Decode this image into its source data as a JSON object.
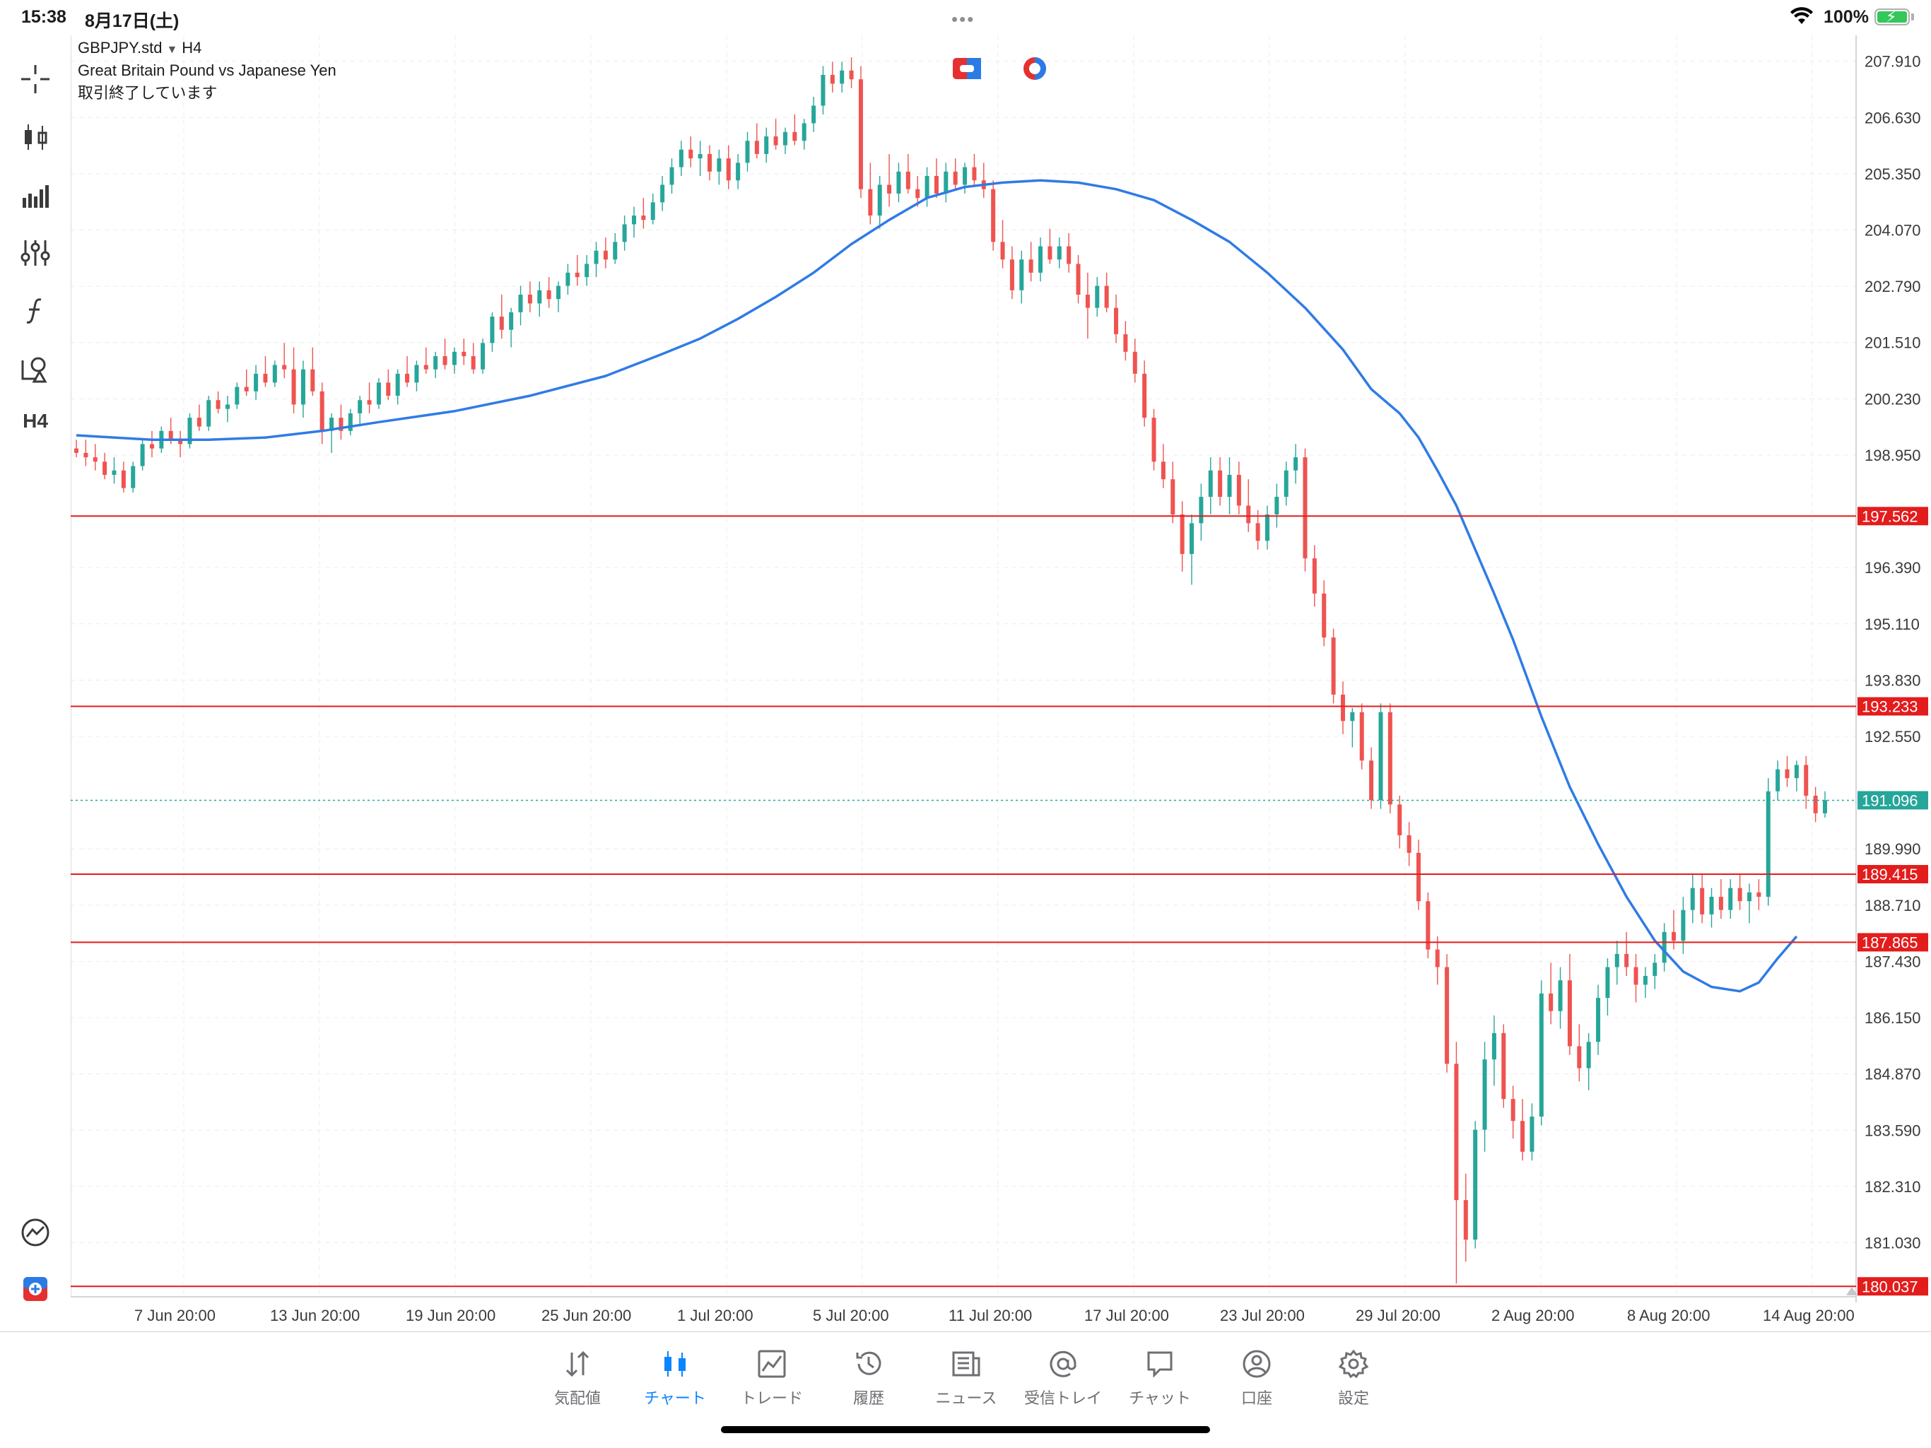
{
  "status_bar": {
    "time": "15:38",
    "date": "8月17日(土)",
    "dots": "•••",
    "battery": "100%"
  },
  "chart": {
    "symbol": "GBPJPY.std",
    "timeframe": "H4",
    "description": "Great Britain Pound vs Japanese Yen",
    "market_status": "取引終了しています",
    "colors": {
      "bull": "#26a69a",
      "bear": "#ef5350",
      "ma": "#2f7be6",
      "hline": "#e31c1c",
      "grid": "#ececec",
      "current": "#26a69a"
    }
  },
  "toolbar": {
    "timeframe_label": "H4",
    "items": [
      "crosshair-icon",
      "candlestick-icon",
      "indicators-icon",
      "sliders-icon",
      "function-icon",
      "objects-icon",
      "timeframe",
      "trend-icon",
      "trade-icon"
    ]
  },
  "chart_data": {
    "type": "candlestick",
    "y_ticks": [
      "207.910",
      "206.630",
      "205.350",
      "204.070",
      "202.790",
      "201.510",
      "200.230",
      "198.950",
      "196.390",
      "195.110",
      "193.830",
      "192.550",
      "189.990",
      "188.710",
      "187.430",
      "186.150",
      "184.870",
      "183.590",
      "182.310",
      "181.030"
    ],
    "y_range": [
      179.8,
      208.5
    ],
    "x_ticks": [
      "7 Jun 20:00",
      "13 Jun 20:00",
      "19 Jun 20:00",
      "25 Jun 20:00",
      "1 Jul 20:00",
      "5 Jul 20:00",
      "11 Jul 20:00",
      "17 Jul 20:00",
      "23 Jul 20:00",
      "29 Jul 20:00",
      "2 Aug 20:00",
      "8 Aug 20:00",
      "14 Aug 20:00"
    ],
    "horizontal_lines": [
      {
        "price": "197.562",
        "value": 197.562
      },
      {
        "price": "193.233",
        "value": 193.233
      },
      {
        "price": "189.415",
        "value": 189.415
      },
      {
        "price": "187.865",
        "value": 187.865
      },
      {
        "price": "180.037",
        "value": 180.037
      }
    ],
    "current_price": {
      "label": "191.096",
      "value": 191.096
    },
    "candles": [
      [
        199.1,
        199.3,
        198.9,
        199.0
      ],
      [
        199.0,
        199.3,
        198.7,
        198.9
      ],
      [
        198.9,
        199.2,
        198.6,
        198.8
      ],
      [
        198.8,
        199.0,
        198.4,
        198.5
      ],
      [
        198.5,
        198.9,
        198.3,
        198.6
      ],
      [
        198.6,
        198.8,
        198.1,
        198.2
      ],
      [
        198.2,
        198.8,
        198.1,
        198.7
      ],
      [
        198.7,
        199.3,
        198.6,
        199.2
      ],
      [
        199.2,
        199.5,
        198.9,
        199.1
      ],
      [
        199.1,
        199.6,
        199.0,
        199.5
      ],
      [
        199.5,
        199.8,
        199.2,
        199.3
      ],
      [
        199.3,
        199.5,
        198.9,
        199.2
      ],
      [
        199.2,
        199.9,
        199.1,
        199.8
      ],
      [
        199.8,
        200.1,
        199.5,
        199.6
      ],
      [
        199.6,
        200.3,
        199.5,
        200.2
      ],
      [
        200.2,
        200.4,
        199.9,
        200.0
      ],
      [
        200.0,
        200.3,
        199.7,
        200.1
      ],
      [
        200.1,
        200.6,
        200.0,
        200.5
      ],
      [
        200.5,
        200.9,
        200.3,
        200.4
      ],
      [
        200.4,
        201.0,
        200.2,
        200.8
      ],
      [
        200.8,
        201.2,
        200.5,
        200.6
      ],
      [
        200.6,
        201.1,
        200.5,
        201.0
      ],
      [
        201.0,
        201.5,
        200.7,
        200.9
      ],
      [
        200.9,
        201.4,
        199.9,
        200.1
      ],
      [
        200.1,
        201.1,
        199.8,
        200.9
      ],
      [
        200.9,
        201.4,
        200.3,
        200.4
      ],
      [
        200.4,
        200.6,
        199.2,
        199.5
      ],
      [
        199.5,
        199.9,
        199.0,
        199.8
      ],
      [
        199.8,
        200.1,
        199.3,
        199.5
      ],
      [
        199.5,
        200.0,
        199.4,
        199.9
      ],
      [
        199.9,
        200.3,
        199.6,
        200.2
      ],
      [
        200.2,
        200.6,
        199.9,
        200.1
      ],
      [
        200.1,
        200.7,
        200.0,
        200.6
      ],
      [
        200.6,
        200.9,
        200.2,
        200.3
      ],
      [
        200.3,
        200.9,
        200.1,
        200.8
      ],
      [
        200.8,
        201.2,
        200.5,
        200.6
      ],
      [
        200.6,
        201.1,
        200.4,
        201.0
      ],
      [
        201.0,
        201.4,
        200.8,
        200.9
      ],
      [
        200.9,
        201.3,
        200.7,
        201.2
      ],
      [
        201.2,
        201.6,
        200.9,
        201.0
      ],
      [
        201.0,
        201.4,
        200.8,
        201.3
      ],
      [
        201.3,
        201.6,
        201.0,
        201.2
      ],
      [
        201.2,
        201.5,
        200.8,
        200.9
      ],
      [
        200.9,
        201.6,
        200.8,
        201.5
      ],
      [
        201.5,
        202.2,
        201.3,
        202.1
      ],
      [
        202.1,
        202.6,
        201.6,
        201.8
      ],
      [
        201.8,
        202.3,
        201.4,
        202.2
      ],
      [
        202.2,
        202.8,
        201.9,
        202.6
      ],
      [
        202.6,
        202.9,
        202.2,
        202.4
      ],
      [
        202.4,
        202.9,
        202.1,
        202.7
      ],
      [
        202.7,
        203.0,
        202.3,
        202.5
      ],
      [
        202.5,
        202.9,
        202.2,
        202.8
      ],
      [
        202.8,
        203.3,
        202.6,
        203.1
      ],
      [
        203.1,
        203.5,
        202.8,
        203.0
      ],
      [
        203.0,
        203.5,
        202.8,
        203.3
      ],
      [
        203.3,
        203.8,
        203.0,
        203.6
      ],
      [
        203.6,
        203.9,
        203.2,
        203.4
      ],
      [
        203.4,
        204.0,
        203.3,
        203.8
      ],
      [
        203.8,
        204.4,
        203.6,
        204.2
      ],
      [
        204.2,
        204.6,
        203.9,
        204.4
      ],
      [
        204.4,
        204.8,
        204.1,
        204.3
      ],
      [
        204.3,
        204.9,
        204.2,
        204.7
      ],
      [
        204.7,
        205.3,
        204.5,
        205.1
      ],
      [
        205.1,
        205.7,
        204.9,
        205.5
      ],
      [
        205.5,
        206.1,
        205.3,
        205.9
      ],
      [
        205.9,
        206.2,
        205.5,
        205.7
      ],
      [
        205.7,
        206.1,
        205.3,
        205.8
      ],
      [
        205.8,
        206.0,
        205.2,
        205.4
      ],
      [
        205.4,
        205.9,
        205.1,
        205.7
      ],
      [
        205.7,
        206.0,
        205.0,
        205.2
      ],
      [
        205.2,
        205.8,
        205.0,
        205.6
      ],
      [
        205.6,
        206.3,
        205.4,
        206.1
      ],
      [
        206.1,
        206.5,
        205.7,
        205.8
      ],
      [
        205.8,
        206.4,
        205.6,
        206.2
      ],
      [
        206.2,
        206.6,
        205.9,
        206.0
      ],
      [
        206.0,
        206.4,
        205.8,
        206.3
      ],
      [
        206.3,
        206.7,
        206.0,
        206.1
      ],
      [
        206.1,
        206.6,
        205.9,
        206.5
      ],
      [
        206.5,
        207.1,
        206.3,
        206.9
      ],
      [
        206.9,
        207.8,
        206.7,
        207.6
      ],
      [
        207.6,
        207.9,
        207.2,
        207.4
      ],
      [
        207.4,
        207.9,
        207.2,
        207.7
      ],
      [
        207.7,
        208.0,
        207.3,
        207.5
      ],
      [
        207.5,
        207.8,
        204.8,
        205.0
      ],
      [
        205.0,
        205.6,
        204.2,
        204.4
      ],
      [
        204.4,
        205.3,
        204.1,
        205.1
      ],
      [
        205.1,
        205.8,
        204.6,
        204.9
      ],
      [
        204.9,
        205.6,
        204.7,
        205.4
      ],
      [
        205.4,
        205.8,
        204.9,
        205.0
      ],
      [
        205.0,
        205.3,
        204.6,
        204.8
      ],
      [
        204.8,
        205.5,
        204.6,
        205.3
      ],
      [
        205.3,
        205.7,
        204.8,
        204.9
      ],
      [
        204.9,
        205.6,
        204.7,
        205.4
      ],
      [
        205.4,
        205.7,
        205.0,
        205.1
      ],
      [
        205.1,
        205.6,
        204.9,
        205.5
      ],
      [
        205.5,
        205.8,
        205.1,
        205.2
      ],
      [
        205.2,
        205.6,
        204.8,
        205.0
      ],
      [
        205.0,
        205.2,
        203.6,
        203.8
      ],
      [
        203.8,
        204.3,
        203.2,
        203.4
      ],
      [
        203.4,
        203.7,
        202.5,
        202.7
      ],
      [
        202.7,
        203.6,
        202.4,
        203.4
      ],
      [
        203.4,
        203.8,
        202.9,
        203.1
      ],
      [
        203.1,
        203.9,
        202.9,
        203.7
      ],
      [
        203.7,
        204.1,
        203.3,
        203.4
      ],
      [
        203.4,
        203.9,
        203.2,
        203.7
      ],
      [
        203.7,
        204.0,
        203.1,
        203.3
      ],
      [
        203.3,
        203.5,
        202.4,
        202.6
      ],
      [
        202.6,
        203.1,
        201.6,
        202.3
      ],
      [
        202.3,
        203.0,
        202.1,
        202.8
      ],
      [
        202.8,
        203.1,
        202.2,
        202.3
      ],
      [
        202.3,
        202.6,
        201.5,
        201.7
      ],
      [
        201.7,
        202.0,
        201.1,
        201.3
      ],
      [
        201.3,
        201.6,
        200.6,
        200.8
      ],
      [
        200.8,
        201.1,
        199.6,
        199.8
      ],
      [
        199.8,
        200.0,
        198.6,
        198.8
      ],
      [
        198.8,
        199.2,
        198.2,
        198.4
      ],
      [
        198.4,
        198.8,
        197.4,
        197.6
      ],
      [
        197.6,
        197.9,
        196.3,
        196.7
      ],
      [
        196.7,
        197.6,
        196.0,
        197.4
      ],
      [
        197.4,
        198.3,
        197.0,
        198.0
      ],
      [
        198.0,
        198.9,
        197.6,
        198.6
      ],
      [
        198.6,
        198.9,
        197.8,
        198.0
      ],
      [
        198.0,
        198.9,
        197.6,
        198.5
      ],
      [
        198.5,
        198.8,
        197.6,
        197.8
      ],
      [
        197.8,
        198.4,
        197.2,
        197.4
      ],
      [
        197.4,
        197.7,
        196.8,
        197.0
      ],
      [
        197.0,
        197.8,
        196.8,
        197.6
      ],
      [
        197.6,
        198.3,
        197.3,
        198.0
      ],
      [
        198.0,
        198.8,
        197.8,
        198.6
      ],
      [
        198.6,
        199.2,
        198.3,
        198.9
      ],
      [
        198.9,
        199.1,
        196.3,
        196.6
      ],
      [
        196.6,
        196.9,
        195.5,
        195.8
      ],
      [
        195.8,
        196.1,
        194.6,
        194.8
      ],
      [
        194.8,
        195.0,
        193.3,
        193.5
      ],
      [
        193.5,
        193.8,
        192.6,
        192.9
      ],
      [
        192.9,
        193.2,
        192.3,
        193.1
      ],
      [
        193.1,
        193.3,
        191.8,
        192.0
      ],
      [
        192.0,
        192.3,
        190.9,
        191.1
      ],
      [
        191.1,
        193.3,
        190.9,
        193.1
      ],
      [
        193.1,
        193.3,
        190.8,
        191.0
      ],
      [
        191.0,
        191.2,
        190.0,
        190.3
      ],
      [
        190.3,
        190.6,
        189.6,
        189.9
      ],
      [
        189.9,
        190.2,
        188.6,
        188.8
      ],
      [
        188.8,
        189.0,
        187.5,
        187.7
      ],
      [
        187.7,
        188.0,
        186.9,
        187.3
      ],
      [
        187.3,
        187.6,
        184.9,
        185.1
      ],
      [
        185.1,
        185.6,
        180.1,
        182.0
      ],
      [
        182.0,
        182.6,
        180.6,
        181.1
      ],
      [
        181.1,
        183.8,
        180.9,
        183.6
      ],
      [
        183.6,
        185.6,
        183.1,
        185.2
      ],
      [
        185.2,
        186.2,
        184.6,
        185.8
      ],
      [
        185.8,
        186.0,
        184.1,
        184.3
      ],
      [
        184.3,
        184.6,
        183.4,
        183.8
      ],
      [
        183.8,
        184.3,
        182.9,
        183.1
      ],
      [
        183.1,
        184.2,
        182.9,
        183.9
      ],
      [
        183.9,
        187.0,
        183.7,
        186.7
      ],
      [
        186.7,
        187.4,
        186.0,
        186.3
      ],
      [
        186.3,
        187.3,
        185.9,
        187.0
      ],
      [
        187.0,
        187.6,
        185.3,
        185.5
      ],
      [
        185.5,
        186.0,
        184.7,
        185.0
      ],
      [
        185.0,
        185.8,
        184.5,
        185.6
      ],
      [
        185.6,
        186.9,
        185.3,
        186.6
      ],
      [
        186.6,
        187.5,
        186.2,
        187.3
      ],
      [
        187.3,
        187.9,
        186.9,
        187.6
      ],
      [
        187.6,
        188.1,
        187.1,
        187.3
      ],
      [
        187.3,
        187.6,
        186.5,
        186.9
      ],
      [
        186.9,
        187.3,
        186.6,
        187.1
      ],
      [
        187.1,
        187.6,
        186.8,
        187.4
      ],
      [
        187.4,
        188.3,
        187.2,
        188.1
      ],
      [
        188.1,
        188.6,
        187.7,
        187.9
      ],
      [
        187.9,
        188.9,
        187.6,
        188.6
      ],
      [
        188.6,
        189.4,
        188.3,
        189.1
      ],
      [
        189.1,
        189.4,
        188.3,
        188.5
      ],
      [
        188.5,
        189.1,
        188.2,
        188.9
      ],
      [
        188.9,
        189.3,
        188.4,
        188.6
      ],
      [
        188.6,
        189.3,
        188.4,
        189.1
      ],
      [
        189.1,
        189.4,
        188.6,
        188.8
      ],
      [
        188.8,
        189.2,
        188.3,
        189.0
      ],
      [
        189.0,
        189.3,
        188.6,
        188.9
      ],
      [
        188.9,
        191.6,
        188.7,
        191.3
      ],
      [
        191.3,
        192.0,
        191.1,
        191.8
      ],
      [
        191.8,
        192.1,
        191.4,
        191.6
      ],
      [
        191.6,
        192.0,
        191.3,
        191.9
      ],
      [
        191.9,
        192.1,
        190.9,
        191.2
      ],
      [
        191.2,
        191.4,
        190.6,
        190.8
      ],
      [
        190.8,
        191.3,
        190.7,
        191.1
      ]
    ],
    "ma": [
      [
        0,
        199.4
      ],
      [
        8,
        199.3
      ],
      [
        14,
        199.3
      ],
      [
        20,
        199.35
      ],
      [
        26,
        199.5
      ],
      [
        32,
        199.7
      ],
      [
        40,
        199.95
      ],
      [
        48,
        200.3
      ],
      [
        56,
        200.75
      ],
      [
        62,
        201.25
      ],
      [
        66,
        201.6
      ],
      [
        70,
        202.05
      ],
      [
        74,
        202.55
      ],
      [
        78,
        203.1
      ],
      [
        82,
        203.75
      ],
      [
        86,
        204.3
      ],
      [
        90,
        204.8
      ],
      [
        94,
        205.05
      ],
      [
        98,
        205.15
      ],
      [
        102,
        205.2
      ],
      [
        106,
        205.15
      ],
      [
        110,
        205.0
      ],
      [
        114,
        204.75
      ],
      [
        118,
        204.3
      ],
      [
        122,
        203.8
      ],
      [
        126,
        203.1
      ],
      [
        130,
        202.3
      ],
      [
        134,
        201.35
      ],
      [
        137,
        200.45
      ],
      [
        140,
        199.9
      ],
      [
        142,
        199.35
      ],
      [
        144,
        198.6
      ],
      [
        146,
        197.8
      ],
      [
        148,
        196.8
      ],
      [
        150,
        195.8
      ],
      [
        152,
        194.75
      ],
      [
        155,
        193.0
      ],
      [
        158,
        191.4
      ],
      [
        161,
        190.1
      ],
      [
        164,
        188.9
      ],
      [
        167,
        187.9
      ],
      [
        170,
        187.2
      ],
      [
        173,
        186.85
      ],
      [
        176,
        186.75
      ],
      [
        178,
        186.95
      ],
      [
        180,
        187.5
      ],
      [
        182,
        188.0
      ]
    ]
  },
  "tabs": [
    {
      "label": "気配値",
      "icon": "quotes-icon"
    },
    {
      "label": "チャート",
      "icon": "chart-icon"
    },
    {
      "label": "トレード",
      "icon": "trade-icon"
    },
    {
      "label": "履歴",
      "icon": "history-icon"
    },
    {
      "label": "ニュース",
      "icon": "news-icon"
    },
    {
      "label": "受信トレイ",
      "icon": "mailbox-icon"
    },
    {
      "label": "チャット",
      "icon": "chat-icon"
    },
    {
      "label": "口座",
      "icon": "account-icon"
    },
    {
      "label": "設定",
      "icon": "settings-icon"
    }
  ]
}
